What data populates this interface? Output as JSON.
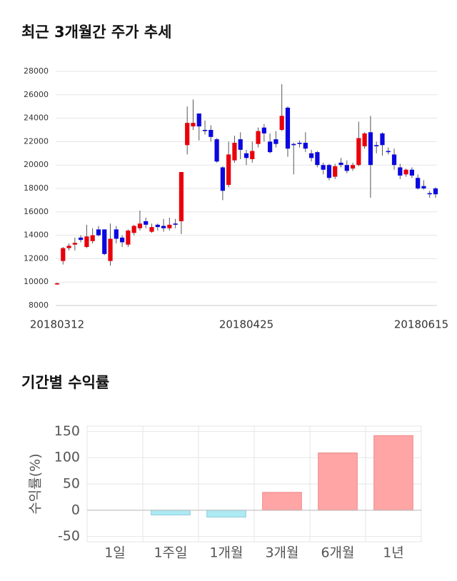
{
  "chart_data": [
    {
      "type": "candlestick",
      "title": "최근 3개월간 주가 추세",
      "categories": [
        "20180312",
        null,
        null,
        null,
        null,
        null,
        null,
        null,
        null,
        null,
        null,
        null,
        null,
        null,
        null,
        null,
        null,
        null,
        null,
        null,
        null,
        null,
        null,
        null,
        null,
        null,
        null,
        null,
        null,
        null,
        null,
        null,
        "20180425",
        null,
        null,
        null,
        null,
        null,
        null,
        null,
        null,
        null,
        null,
        null,
        null,
        null,
        null,
        null,
        null,
        null,
        null,
        null,
        null,
        null,
        null,
        null,
        null,
        null,
        null,
        null,
        null,
        null,
        null,
        null,
        "20180615"
      ],
      "open": [
        9800,
        11800,
        12900,
        13200,
        13800,
        13000,
        13500,
        14500,
        14500,
        11800,
        14500,
        13800,
        13200,
        14200,
        14600,
        15200,
        14300,
        14900,
        14800,
        14600,
        15000,
        15200,
        21700,
        23300,
        24400,
        23000,
        23000,
        22200,
        19800,
        18300,
        20400,
        22200,
        21000,
        20500,
        21800,
        23200,
        22000,
        22200,
        23000,
        24900,
        21800,
        21900,
        21900,
        21000,
        21100,
        20000,
        20000,
        19000,
        20200,
        20000,
        19700,
        20000,
        21600,
        22800,
        21700,
        22700,
        21200,
        20900,
        19800,
        19200,
        19600,
        18900,
        18200,
        17600,
        18000
      ],
      "high": [
        9950,
        13000,
        13300,
        13800,
        14000,
        14900,
        14600,
        14800,
        14500,
        15000,
        14800,
        14000,
        14500,
        14900,
        16100,
        15500,
        15000,
        15000,
        15400,
        15500,
        15400,
        19400,
        25000,
        25600,
        24400,
        23800,
        23400,
        22300,
        19900,
        22000,
        22500,
        22800,
        21300,
        22000,
        23200,
        23500,
        22700,
        22900,
        26900,
        25000,
        21900,
        22100,
        22800,
        21300,
        21200,
        20200,
        20100,
        20100,
        20600,
        20400,
        20200,
        23700,
        22800,
        24200,
        22000,
        22800,
        21500,
        21400,
        20100,
        19700,
        19800,
        19200,
        18700,
        17800,
        18100
      ],
      "low": [
        9750,
        11500,
        12700,
        12700,
        13400,
        12900,
        13300,
        13900,
        12300,
        11400,
        13300,
        13000,
        13000,
        14000,
        14400,
        14600,
        14200,
        14400,
        14300,
        14400,
        14600,
        14100,
        20900,
        23000,
        22100,
        22600,
        22000,
        20200,
        17000,
        18100,
        20200,
        20500,
        20000,
        20200,
        21500,
        22000,
        21000,
        21500,
        22900,
        20700,
        19200,
        21500,
        21100,
        20300,
        19800,
        19200,
        18700,
        18800,
        19800,
        19300,
        19500,
        19900,
        21400,
        17200,
        21000,
        20800,
        20900,
        19600,
        18800,
        19000,
        18900,
        17900,
        17900,
        17200,
        17200
      ],
      "close": [
        9900,
        12900,
        13100,
        13350,
        13600,
        13900,
        14000,
        14000,
        12400,
        13700,
        13700,
        13400,
        14400,
        14800,
        15000,
        14900,
        14700,
        14700,
        14600,
        14900,
        14900,
        19400,
        23600,
        23600,
        23300,
        22900,
        22400,
        20300,
        17800,
        20900,
        21900,
        21300,
        20600,
        21200,
        22900,
        22700,
        21100,
        21800,
        24200,
        21400,
        21700,
        21800,
        21400,
        20600,
        20000,
        19600,
        18900,
        19900,
        20000,
        19500,
        20000,
        22300,
        22700,
        20000,
        21600,
        21700,
        21100,
        20000,
        19100,
        19600,
        19100,
        18000,
        18000,
        17500,
        17500
      ],
      "up_color": "#e8000b",
      "down_color": "#0a07e0",
      "ylim": [
        8000,
        28000
      ],
      "yticks": [
        8000,
        10000,
        12000,
        14000,
        16000,
        18000,
        20000,
        22000,
        24000,
        26000,
        28000
      ],
      "grid": true
    },
    {
      "type": "bar",
      "title": "기간별 수익률",
      "ylabel": "수익률(%)",
      "categories": [
        "1일",
        "1주일",
        "1개월",
        "3개월",
        "6개월",
        "1년"
      ],
      "values": [
        0,
        -9,
        -13,
        34,
        109,
        142
      ],
      "positive_color": "#ffa5a5",
      "negative_color": "#aeeaf3",
      "ylim": [
        -60,
        160
      ],
      "yticks": [
        -50,
        0,
        50,
        100,
        150
      ],
      "grid": true
    }
  ]
}
